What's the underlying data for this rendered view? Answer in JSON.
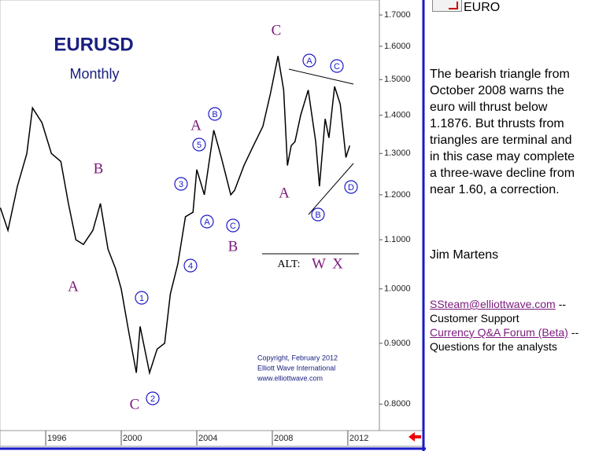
{
  "chart_data": {
    "type": "line",
    "title": "EURUSD",
    "subtitle": "Monthly",
    "x": [
      1993.6,
      1994.0,
      1994.5,
      1995.0,
      1995.3,
      1995.8,
      1996.3,
      1996.8,
      1997.2,
      1997.6,
      1998.0,
      1998.5,
      1998.9,
      1999.3,
      1999.7,
      2000.0,
      2000.4,
      2000.8,
      2001.0,
      2001.5,
      2001.9,
      2002.3,
      2002.6,
      2003.0,
      2003.4,
      2003.8,
      2004.0,
      2004.4,
      2004.9,
      2005.3,
      2005.8,
      2006.0,
      2006.5,
      2007.0,
      2007.5,
      2007.9,
      2008.3,
      2008.6,
      2008.8,
      2009.0,
      2009.2,
      2009.5,
      2009.9,
      2010.3,
      2010.5,
      2010.8,
      2011.0,
      2011.3,
      2011.6,
      2011.9,
      2012.1
    ],
    "values": [
      1.17,
      1.12,
      1.22,
      1.3,
      1.42,
      1.38,
      1.3,
      1.28,
      1.18,
      1.1,
      1.09,
      1.12,
      1.18,
      1.08,
      1.04,
      1.0,
      0.92,
      0.85,
      0.93,
      0.85,
      0.89,
      0.9,
      0.99,
      1.05,
      1.15,
      1.16,
      1.26,
      1.2,
      1.36,
      1.29,
      1.2,
      1.21,
      1.27,
      1.32,
      1.37,
      1.46,
      1.57,
      1.47,
      1.27,
      1.32,
      1.33,
      1.4,
      1.47,
      1.33,
      1.22,
      1.39,
      1.34,
      1.48,
      1.43,
      1.29,
      1.32
    ],
    "color": "#000000",
    "log_y": true,
    "xlim": [
      1993.58,
      2013.67
    ],
    "xticks": [
      1996,
      2000,
      2004,
      2008,
      2012
    ],
    "ylim": [
      0.76,
      1.75
    ],
    "yticks": [
      {
        "value": 0.8,
        "label": "0.8000"
      },
      {
        "value": 0.9,
        "label": "0.9000"
      },
      {
        "value": 1.0,
        "label": "1.0000"
      },
      {
        "value": 1.1,
        "label": "1.1000"
      },
      {
        "value": 1.2,
        "label": "1.2000"
      },
      {
        "value": 1.3,
        "label": "1.3000"
      },
      {
        "value": 1.4,
        "label": "1.4000"
      },
      {
        "value": 1.5,
        "label": "1.5000"
      },
      {
        "value": 1.6,
        "label": "1.6000"
      },
      {
        "value": 1.7,
        "label": "1.7000"
      }
    ],
    "wave_labels": [
      "C",
      "B",
      "A",
      "C",
      "A",
      "B",
      "A"
    ],
    "circled_labels": [
      "1",
      "2",
      "3",
      "4",
      "5",
      "A",
      "B",
      "C",
      "A",
      "C",
      "B",
      "D"
    ],
    "alt_labels": [
      "ALT:",
      "W",
      "X"
    ],
    "copyright": [
      "Copyright, February 2012",
      "Elliott Wave International",
      "www.elliottwave.com"
    ]
  },
  "sidebar": {
    "header": "EURO",
    "paragraph": [
      "The bearish triangle from",
      "October 2008 warns the",
      "euro will thrust below",
      "1.1876.  But thrusts from",
      "triangles are terminal and",
      "in this case may complete",
      "a three-wave decline from",
      "near 1.60, a correction."
    ],
    "author": "Jim Martens",
    "links": [
      {
        "link": "SSteam@elliottwave.com",
        "after": "--",
        "caption": "Customer Support"
      },
      {
        "link": "Currency Q&A Forum (Beta)",
        "after": "--",
        "caption": "Questions for the analysts"
      }
    ]
  }
}
